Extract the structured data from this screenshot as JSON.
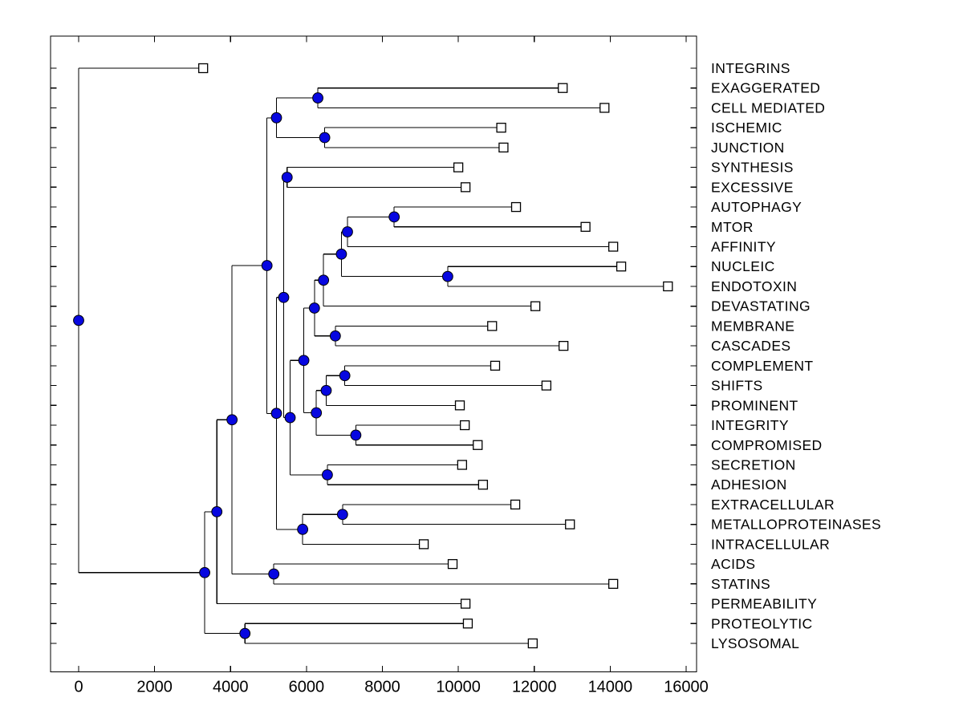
{
  "figure": {
    "background": "#ffffff",
    "description": "Horizontal dendrogram (hierarchical clustering tree) with 30 labeled leaves"
  },
  "chart_data": {
    "type": "dendrogram",
    "orientation": "horizontal",
    "title": "",
    "xlabel": "",
    "ylabel": "",
    "grid": false,
    "x_axis": {
      "range": [
        0,
        16000
      ],
      "ticks": [
        0,
        2000,
        4000,
        6000,
        8000,
        10000,
        12000,
        14000,
        16000
      ]
    },
    "colors": {
      "branch": "#000000",
      "internal_node_fill": "#0707e0",
      "internal_node_edge": "#000000",
      "leaf_marker_fill": "#ffffff",
      "leaf_marker_edge": "#000000",
      "axis": "#000000"
    },
    "markers": {
      "internal_node": "filled-circle",
      "leaf": "open-square"
    },
    "leaf_labels": [
      "INTEGRINS",
      "EXAGGERATED",
      "CELL MEDIATED",
      "ISCHEMIC",
      "JUNCTION",
      "SYNTHESIS",
      "EXCESSIVE",
      "AUTOPHAGY",
      "MTOR",
      "AFFINITY",
      "NUCLEIC",
      "ENDOTOXIN",
      "DEVASTATING",
      "MEMBRANE",
      "CASCADES",
      "COMPLEMENT",
      "SHIFTS",
      "PROMINENT",
      "INTEGRITY",
      "COMPROMISED",
      "SECRETION",
      "ADHESION",
      "EXTRACELLULAR",
      "METALLOPROTEINASES",
      "INTRACELLULAR",
      "ACIDS",
      "STATINS",
      "PERMEABILITY",
      "PROTEOLYTIC",
      "LYSOSOMAL"
    ],
    "tree": {
      "d": 0,
      "children": [
        {
          "label": "INTEGRINS",
          "d": 3280
        },
        {
          "d": 3320,
          "children": [
            {
              "d": 3640,
              "children": [
                {
                  "d": 4040,
                  "children": [
                    {
                      "d": 4960,
                      "children": [
                        {
                          "d": 5210,
                          "children": [
                            {
                              "d": 6300,
                              "children": [
                                {
                                  "label": "EXAGGERATED",
                                  "d": 12750
                                },
                                {
                                  "label": "CELL MEDIATED",
                                  "d": 13850
                                }
                              ]
                            },
                            {
                              "d": 6480,
                              "children": [
                                {
                                  "label": "ISCHEMIC",
                                  "d": 11130
                                },
                                {
                                  "label": "JUNCTION",
                                  "d": 11190
                                }
                              ]
                            }
                          ]
                        },
                        {
                          "d": 5210,
                          "children": [
                            {
                              "d": 5400,
                              "children": [
                                {
                                  "d": 5490,
                                  "children": [
                                    {
                                      "label": "SYNTHESIS",
                                      "d": 10000
                                    },
                                    {
                                      "label": "EXCESSIVE",
                                      "d": 10190
                                    }
                                  ]
                                },
                                {
                                  "d": 5570,
                                  "children": [
                                    {
                                      "d": 5930,
                                      "children": [
                                        {
                                          "d": 6210,
                                          "children": [
                                            {
                                              "d": 6450,
                                              "children": [
                                                {
                                                  "d": 6920,
                                                  "children": [
                                                    {
                                                      "d": 7080,
                                                      "children": [
                                                        {
                                                          "d": 8310,
                                                          "children": [
                                                            {
                                                              "label": "AUTOPHAGY",
                                                              "d": 11520
                                                            },
                                                            {
                                                              "label": "MTOR",
                                                              "d": 13350
                                                            }
                                                          ]
                                                        },
                                                        {
                                                          "label": "AFFINITY",
                                                          "d": 14080
                                                        }
                                                      ]
                                                    },
                                                    {
                                                      "d": 9720,
                                                      "children": [
                                                        {
                                                          "label": "NUCLEIC",
                                                          "d": 14290
                                                        },
                                                        {
                                                          "label": "ENDOTOXIN",
                                                          "d": 15520
                                                        }
                                                      ]
                                                    }
                                                  ]
                                                },
                                                {
                                                  "label": "DEVASTATING",
                                                  "d": 12030
                                                }
                                              ]
                                            },
                                            {
                                              "d": 6760,
                                              "children": [
                                                {
                                                  "label": "MEMBRANE",
                                                  "d": 10890
                                                },
                                                {
                                                  "label": "CASCADES",
                                                  "d": 12770
                                                }
                                              ]
                                            }
                                          ]
                                        },
                                        {
                                          "d": 6260,
                                          "children": [
                                            {
                                              "d": 6520,
                                              "children": [
                                                {
                                                  "d": 7010,
                                                  "children": [
                                                    {
                                                      "label": "COMPLEMENT",
                                                      "d": 10970
                                                    },
                                                    {
                                                      "label": "SHIFTS",
                                                      "d": 12320
                                                    }
                                                  ]
                                                },
                                                {
                                                  "label": "PROMINENT",
                                                  "d": 10040
                                                }
                                              ]
                                            },
                                            {
                                              "d": 7300,
                                              "children": [
                                                {
                                                  "label": "INTEGRITY",
                                                  "d": 10170
                                                },
                                                {
                                                  "label": "COMPROMISED",
                                                  "d": 10510
                                                }
                                              ]
                                            }
                                          ]
                                        }
                                      ]
                                    },
                                    {
                                      "d": 6550,
                                      "children": [
                                        {
                                          "label": "SECRETION",
                                          "d": 10100
                                        },
                                        {
                                          "label": "ADHESION",
                                          "d": 10650
                                        }
                                      ]
                                    }
                                  ]
                                }
                              ]
                            },
                            {
                              "d": 5900,
                              "children": [
                                {
                                  "d": 6950,
                                  "children": [
                                    {
                                      "label": "EXTRACELLULAR",
                                      "d": 11500
                                    },
                                    {
                                      "label": "METALLOPROTEINASES",
                                      "d": 12940
                                    }
                                  ]
                                },
                                {
                                  "label": "INTRACELLULAR",
                                  "d": 9090
                                }
                              ]
                            }
                          ]
                        }
                      ]
                    },
                    {
                      "d": 5140,
                      "children": [
                        {
                          "label": "ACIDS",
                          "d": 9850
                        },
                        {
                          "label": "STATINS",
                          "d": 14080
                        }
                      ]
                    }
                  ]
                },
                {
                  "label": "PERMEABILITY",
                  "d": 10190
                }
              ]
            },
            {
              "d": 4380,
              "children": [
                {
                  "label": "PROTEOLYTIC",
                  "d": 10250
                },
                {
                  "label": "LYSOSOMAL",
                  "d": 11960
                }
              ]
            }
          ]
        }
      ]
    }
  }
}
